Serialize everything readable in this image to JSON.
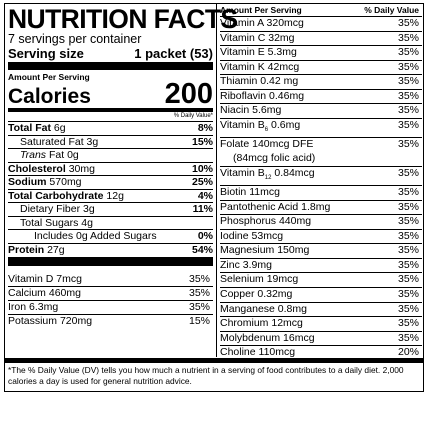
{
  "header": {
    "title": "NUTRITION FACTS",
    "servings": "7 servings per container",
    "serving_size_label": "Serving size",
    "serving_size_value": "1 packet (53)"
  },
  "calories": {
    "amount_per_serving": "Amount Per Serving",
    "label": "Calories",
    "value": "200",
    "dv_header": "% Daily Value*"
  },
  "nutrients": [
    {
      "name": "Total Fat",
      "amount": "6g",
      "dv": "8%"
    },
    {
      "name": "Saturated Fat",
      "amount": "3g",
      "dv": "15%"
    },
    {
      "name": "Trans",
      "name_suffix": "Fat",
      "amount": "0g",
      "dv": ""
    },
    {
      "name": "Cholesterol",
      "amount": "30mg",
      "dv": "10%"
    },
    {
      "name": "Sodium",
      "amount": "570mg",
      "dv": "25%"
    },
    {
      "name": "Total Carbohydrate",
      "amount": "12g",
      "dv": "4%"
    },
    {
      "name": "Dietary Fiber",
      "amount": "3g",
      "dv": "11%"
    },
    {
      "name": "Total Sugars",
      "amount": "4g",
      "dv": ""
    },
    {
      "name": "Includes 0g Added Sugars",
      "amount": "",
      "dv": "0%"
    },
    {
      "name": "Protein",
      "amount": "27g",
      "dv": "54%"
    }
  ],
  "left_vitamins": [
    {
      "name": "Vitamin D",
      "amount": "7mcg",
      "dv": "35%"
    },
    {
      "name": "Calcium",
      "amount": "460mg",
      "dv": "35%"
    },
    {
      "name": "Iron",
      "amount": "6.3mg",
      "dv": "35%"
    },
    {
      "name": "Potassium",
      "amount": "720mg",
      "dv": "15%"
    }
  ],
  "right_header": {
    "amount_label": "Amount Per Serving",
    "dv_label": "% Daily Value"
  },
  "right_vitamins": [
    {
      "name": "Vitamin A",
      "amount": "320mcg",
      "dv": "35%"
    },
    {
      "name": "Vitamin C",
      "amount": "32mg",
      "dv": "35%"
    },
    {
      "name": "Vitamin E",
      "amount": "5.3mg",
      "dv": "35%"
    },
    {
      "name": "Vitamin K",
      "amount": "42mcg",
      "dv": "35%"
    },
    {
      "name": "Thiamin",
      "amount": "0.42 mg",
      "dv": "35%"
    },
    {
      "name": "Riboflavin",
      "amount": "0.46mg",
      "dv": "35%"
    },
    {
      "name": "Niacin",
      "amount": "5.6mg",
      "dv": "35%"
    },
    {
      "name": "Vitamin B",
      "sub": "6",
      "amount": "0.6mg",
      "dv": "35%"
    },
    {
      "name": "Folate",
      "amount": "140mcg DFE",
      "dv": "35%",
      "note": "(84mcg folic acid)"
    },
    {
      "name": "Vitamin B",
      "sub": "12",
      "amount": "0.84mcg",
      "dv": "35%"
    },
    {
      "name": "Biotin",
      "amount": "11mcg",
      "dv": "35%"
    },
    {
      "name": "Pantothenic Acid",
      "amount": "1.8mg",
      "dv": "35%"
    },
    {
      "name": "Phosphorus",
      "amount": "440mg",
      "dv": "35%"
    },
    {
      "name": "Iodine",
      "amount": "53mcg",
      "dv": "35%"
    },
    {
      "name": "Magnesium",
      "amount": "150mg",
      "dv": "35%"
    },
    {
      "name": "Zinc",
      "amount": "3.9mg",
      "dv": "35%"
    },
    {
      "name": "Selenium",
      "amount": "19mcg",
      "dv": "35%"
    },
    {
      "name": "Copper",
      "amount": "0.32mg",
      "dv": "35%"
    },
    {
      "name": "Manganese",
      "amount": "0.8mg",
      "dv": "35%"
    },
    {
      "name": "Chromium",
      "amount": "12mcg",
      "dv": "35%"
    },
    {
      "name": "Molybdenum",
      "amount": "16mcg",
      "dv": "35%"
    },
    {
      "name": "Choline",
      "amount": "110mcg",
      "dv": "20%"
    }
  ],
  "footnote": "*The % Daily Value (DV) tells you how much a nutrient in a serving of food contributes to a daily diet. 2,000 calories a day is used for general nutrition advice."
}
